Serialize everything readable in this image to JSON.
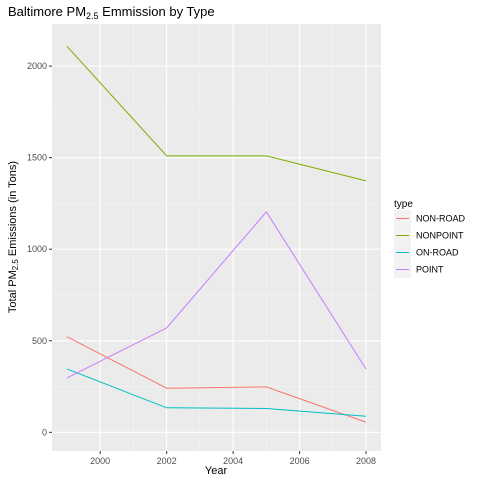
{
  "chart_data": {
    "type": "line",
    "title": {
      "main": "Baltimore PM",
      "sub": "2.5",
      "tail": " Emmission by Type"
    },
    "xlabel": "Year",
    "ylabel": {
      "main": "Total PM",
      "sub": "2.5",
      "tail": " Emissions (in Tons)"
    },
    "x": [
      1999,
      2002,
      2005,
      2008
    ],
    "xlim": [
      1998.55,
      2008.45
    ],
    "ylim": [
      -102,
      2230
    ],
    "xticks": [
      2000,
      2002,
      2004,
      2006,
      2008
    ],
    "yticks": [
      0,
      500,
      1000,
      1500,
      2000
    ],
    "grid": true,
    "legend": {
      "title": "type",
      "position": "right"
    },
    "series": [
      {
        "name": "NON-ROAD",
        "color": "#F8766D",
        "values": [
          522,
          241,
          248,
          55
        ]
      },
      {
        "name": "NONPOINT",
        "color": "#7CAE00",
        "values": [
          2108,
          1510,
          1510,
          1373
        ]
      },
      {
        "name": "ON-ROAD",
        "color": "#00BFC4",
        "values": [
          346,
          134,
          130,
          88
        ]
      },
      {
        "name": "POINT",
        "color": "#C77CFF",
        "values": [
          297,
          570,
          1204,
          345
        ]
      }
    ]
  }
}
